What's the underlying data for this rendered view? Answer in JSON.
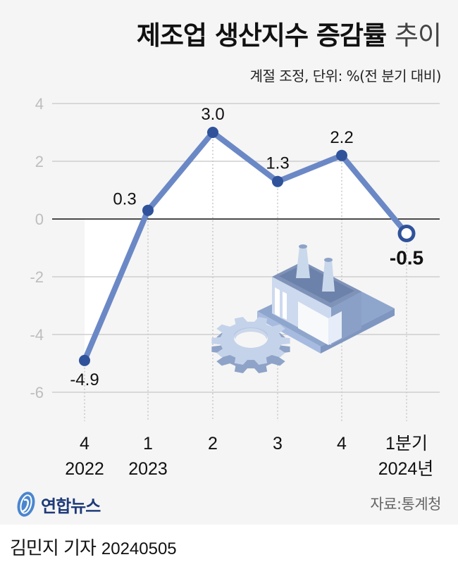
{
  "header": {
    "title_bold": "제조업 생산지수 증감률",
    "title_light": "추이",
    "subtitle": "계절 조정, 단위: %(전 분기 대비)"
  },
  "chart_data": {
    "type": "line",
    "title": "제조업 생산지수 증감률 추이",
    "subtitle": "계절 조정, 단위: %(전 분기 대비)",
    "xlabel": "",
    "ylabel": "%",
    "categories": [
      "2022 4",
      "2023 1",
      "2",
      "3",
      "4",
      "2024년 1분기"
    ],
    "x_tick_top": [
      "4",
      "1",
      "2",
      "3",
      "4",
      "1분기"
    ],
    "x_tick_bottom": [
      "2022",
      "2023",
      "",
      "",
      "",
      "2024년"
    ],
    "values": [
      -4.9,
      0.3,
      3.0,
      1.3,
      2.2,
      -0.5
    ],
    "labels": [
      "-4.9",
      "0.3",
      "3.0",
      "1.3",
      "2.2",
      "-0.5"
    ],
    "yticks": [
      4,
      2,
      0,
      -2,
      -4,
      -6
    ],
    "ytick_labels": [
      "4",
      "2",
      "0",
      "-2",
      "-4",
      "-6"
    ],
    "ylim": [
      -6,
      4
    ],
    "grid": true,
    "legend": "none",
    "highlight_last_point": true,
    "colors": {
      "line": "#6b88c6",
      "marker": "#2f529b",
      "zero_line": "#111111",
      "grid": "#cfcfcf",
      "background": "#f5f5f5"
    }
  },
  "footer": {
    "logo_text": "연합뉴스",
    "source": "자료:통계청",
    "byline_name": "김민지 기자",
    "byline_date": "20240505"
  }
}
